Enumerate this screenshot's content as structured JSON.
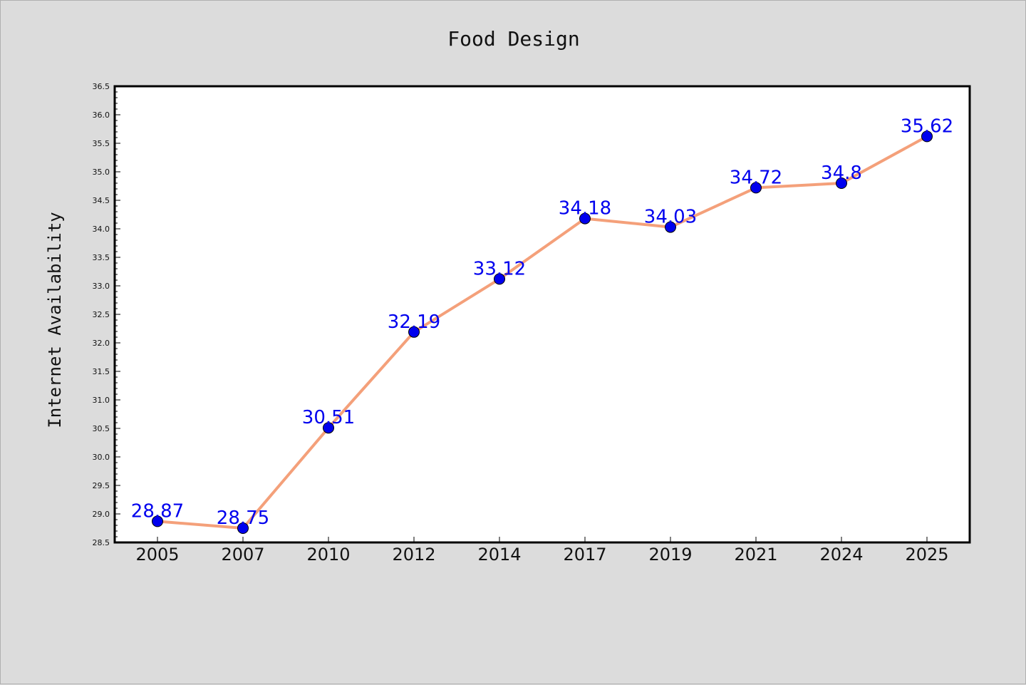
{
  "chart_data": {
    "type": "line",
    "title": "Food Design",
    "xlabel": "",
    "ylabel": "Internet Availability",
    "categories": [
      "2005",
      "2007",
      "2010",
      "2012",
      "2014",
      "2017",
      "2019",
      "2021",
      "2024",
      "2025"
    ],
    "series": [
      {
        "values": [
          28.87,
          28.75,
          30.51,
          32.19,
          33.12,
          34.18,
          34.03,
          34.72,
          34.8,
          35.62
        ],
        "data_labels": [
          "28.87",
          "28.75",
          "30.51",
          "32.19",
          "33.12",
          "34.18",
          "34.03",
          "34.72",
          "34.8",
          "35.62"
        ],
        "line_color": "#f4a07a",
        "marker_color": "#0000ee",
        "label_color": "#0000ee"
      }
    ],
    "ylim": [
      28.5,
      36.5
    ],
    "yticks": [
      "28.5",
      "29.0",
      "29.5",
      "30.0",
      "30.5",
      "31.0",
      "31.5",
      "32.0",
      "32.5",
      "33.0",
      "33.5",
      "34.0",
      "34.5",
      "35.0",
      "35.5",
      "36.0",
      "36.5"
    ],
    "grid": false,
    "legend": "none",
    "background_color": "#dcdcdc",
    "plot_background_color": "#ffffff"
  }
}
